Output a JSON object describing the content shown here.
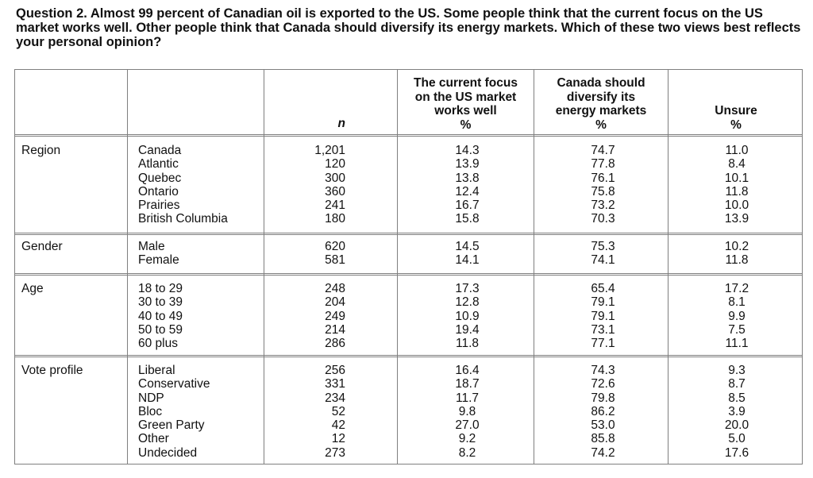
{
  "question": "Question 2. Almost 99 percent of Canadian oil is exported to the US. Some people think that the current focus on the US market works well. Other people think that Canada should diversify its energy markets. Which of these two views best reflects your personal opinion?",
  "headers": {
    "n": "n",
    "col1": [
      "The current focus",
      "on the US market",
      "works well",
      "%"
    ],
    "col2": [
      "Canada should",
      "diversify its",
      "energy markets",
      "%"
    ],
    "col3": [
      "Unsure",
      "%"
    ]
  },
  "groups": [
    {
      "label": "Region",
      "rows": [
        {
          "name": "Canada",
          "n": "1,201",
          "focus": "14.3",
          "diversify": "74.7",
          "unsure": "11.0"
        },
        {
          "name": "Atlantic",
          "n": "120",
          "focus": "13.9",
          "diversify": "77.8",
          "unsure": "8.4"
        },
        {
          "name": "Quebec",
          "n": "300",
          "focus": "13.8",
          "diversify": "76.1",
          "unsure": "10.1"
        },
        {
          "name": "Ontario",
          "n": "360",
          "focus": "12.4",
          "diversify": "75.8",
          "unsure": "11.8"
        },
        {
          "name": "Prairies",
          "n": "241",
          "focus": "16.7",
          "diversify": "73.2",
          "unsure": "10.0"
        },
        {
          "name": "British Columbia",
          "n": "180",
          "focus": "15.8",
          "diversify": "70.3",
          "unsure": "13.9"
        }
      ]
    },
    {
      "label": "Gender",
      "rows": [
        {
          "name": "Male",
          "n": "620",
          "focus": "14.5",
          "diversify": "75.3",
          "unsure": "10.2"
        },
        {
          "name": "Female",
          "n": "581",
          "focus": "14.1",
          "diversify": "74.1",
          "unsure": "11.8"
        }
      ]
    },
    {
      "label": "Age",
      "rows": [
        {
          "name": "18 to 29",
          "n": "248",
          "focus": "17.3",
          "diversify": "65.4",
          "unsure": "17.2"
        },
        {
          "name": "30 to 39",
          "n": "204",
          "focus": "12.8",
          "diversify": "79.1",
          "unsure": "8.1"
        },
        {
          "name": "40 to 49",
          "n": "249",
          "focus": "10.9",
          "diversify": "79.1",
          "unsure": "9.9"
        },
        {
          "name": "50 to 59",
          "n": "214",
          "focus": "19.4",
          "diversify": "73.1",
          "unsure": "7.5"
        },
        {
          "name": "60 plus",
          "n": "286",
          "focus": "11.8",
          "diversify": "77.1",
          "unsure": "11.1"
        }
      ]
    },
    {
      "label": "Vote profile",
      "rows": [
        {
          "name": "Liberal",
          "n": "256",
          "focus": "16.4",
          "diversify": "74.3",
          "unsure": "9.3"
        },
        {
          "name": "Conservative",
          "n": "331",
          "focus": "18.7",
          "diversify": "72.6",
          "unsure": "8.7"
        },
        {
          "name": "NDP",
          "n": "234",
          "focus": "11.7",
          "diversify": "79.8",
          "unsure": "8.5"
        },
        {
          "name": "Bloc",
          "n": "52",
          "focus": "9.8",
          "diversify": "86.2",
          "unsure": "3.9"
        },
        {
          "name": "Green Party",
          "n": "42",
          "focus": "27.0",
          "diversify": "53.0",
          "unsure": "20.0"
        },
        {
          "name": "Other",
          "n": "12",
          "focus": "9.2",
          "diversify": "85.8",
          "unsure": "5.0"
        },
        {
          "name": "Undecided",
          "n": "273",
          "focus": "8.2",
          "diversify": "74.2",
          "unsure": "17.6"
        }
      ]
    }
  ]
}
